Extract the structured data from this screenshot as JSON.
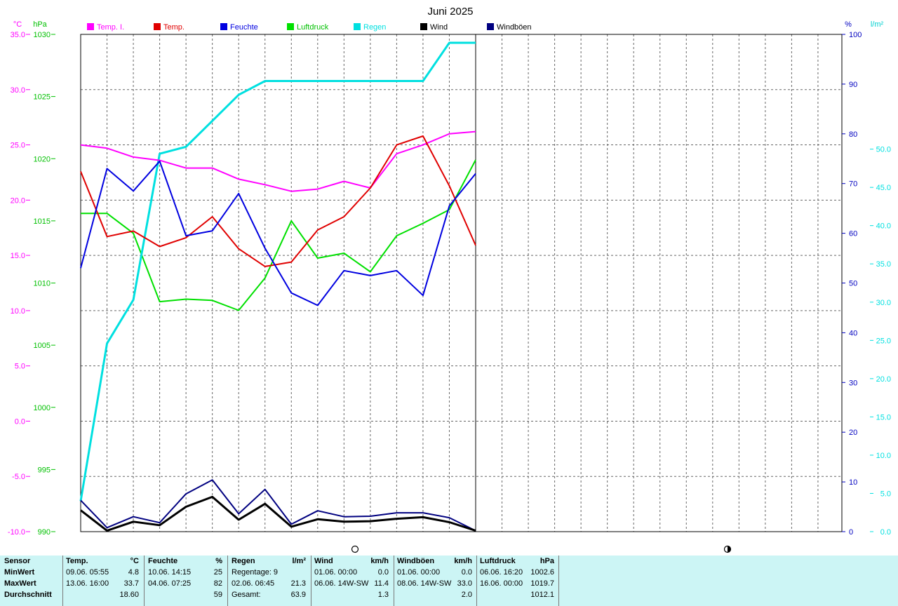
{
  "chart_data": {
    "type": "line",
    "title": "Juni 2025",
    "x": [
      1,
      2,
      3,
      4,
      5,
      6,
      7,
      8,
      9,
      10,
      11,
      12,
      13,
      14,
      15,
      16
    ],
    "axes": {
      "temp": {
        "unit": "°C",
        "range": [
          -10,
          35
        ],
        "ticks": [
          "35.0",
          "30.0",
          "25.0",
          "20.0",
          "15.0",
          "10.0",
          "5.0",
          "0.0",
          "-5.0",
          "-10.0"
        ],
        "color": "#ff00ff"
      },
      "pressure": {
        "unit": "hPa",
        "range": [
          990,
          1030
        ],
        "ticks": [
          "1030",
          "1025",
          "1020",
          "1015",
          "1010",
          "1005",
          "1000",
          "995",
          "990"
        ],
        "color": "#00c000"
      },
      "humidity": {
        "unit": "%",
        "range": [
          0,
          100
        ],
        "ticks": [
          "100",
          "90",
          "80",
          "70",
          "60",
          "50",
          "40",
          "30",
          "20",
          "10",
          "0"
        ],
        "color": "#0000c0"
      },
      "rain": {
        "unit": "l/m²",
        "range": [
          0,
          65
        ],
        "ticks": [
          "50.0",
          "45.0",
          "40.0",
          "35.0",
          "30.0",
          "25.0",
          "20.0",
          "15.0",
          "10.0",
          "5.0",
          "0.0"
        ],
        "color": "#00e0e0"
      }
    },
    "series": [
      {
        "name": "Temp. I.",
        "color": "#ff00ff",
        "axis": "temp",
        "values": [
          25.0,
          24.7,
          23.9,
          23.6,
          22.9,
          22.9,
          21.9,
          21.4,
          20.8,
          21.0,
          21.7,
          21.1,
          24.2,
          25.0,
          26.0,
          26.2
        ]
      },
      {
        "name": "Temp.",
        "color": "#e00000",
        "axis": "temp",
        "values": [
          22.6,
          16.7,
          17.2,
          15.8,
          16.6,
          18.5,
          15.6,
          14.0,
          14.4,
          17.3,
          18.5,
          21.1,
          25.0,
          25.8,
          21.3,
          15.9
        ]
      },
      {
        "name": "Feuchte",
        "color": "#0000e0",
        "axis": "humidity",
        "values": [
          53,
          73,
          68.5,
          74.5,
          59.5,
          60.5,
          68,
          57,
          48,
          45.5,
          52.5,
          51.5,
          52.5,
          47.5,
          65.5,
          72
        ]
      },
      {
        "name": "Luftdruck",
        "color": "#00e000",
        "axis": "pressure",
        "values": [
          1015.6,
          1015.6,
          1014.0,
          1008.5,
          1008.7,
          1008.6,
          1007.8,
          1010.4,
          1015.0,
          1012.0,
          1012.4,
          1010.9,
          1013.8,
          1014.8,
          1015.9,
          1019.9
        ]
      },
      {
        "name": "Regen",
        "color": "#00e0e0",
        "axis": "rain",
        "values": [
          4.0,
          24.6,
          30.3,
          49.4,
          50.3,
          53.7,
          57.1,
          58.9,
          58.9,
          58.9,
          58.9,
          58.9,
          58.9,
          58.9,
          63.9,
          63.9
        ]
      },
      {
        "name": "Wind",
        "color": "#000000",
        "axis": "humidity",
        "values": [
          4.3,
          0.2,
          2.0,
          1.3,
          5.0,
          7.0,
          2.4,
          5.6,
          1.0,
          2.5,
          2.0,
          2.1,
          2.6,
          2.9,
          1.9,
          0.2
        ]
      },
      {
        "name": "Windböen",
        "color": "#000080",
        "axis": "humidity",
        "values": [
          6.3,
          0.8,
          3.0,
          1.8,
          7.6,
          10.4,
          3.6,
          8.5,
          1.5,
          4.2,
          3.0,
          3.1,
          3.8,
          3.8,
          2.8,
          0.2
        ]
      }
    ],
    "grid": true,
    "legend_position": "top",
    "moon_phases": [
      {
        "phase": "new",
        "symbol": "○"
      },
      {
        "phase": "first-quarter",
        "symbol": "◐"
      }
    ]
  },
  "stats": {
    "labels": {
      "sensor": "Sensor",
      "min": "MinWert",
      "max": "MaxWert",
      "avg": "Durchschnitt"
    },
    "temp": {
      "title": "Temp.",
      "unit": "°C",
      "min_date": "09.06.  05:55",
      "min_val": "4.8",
      "max_date": "13.06.  16:00",
      "max_val": "33.7",
      "avg": "18.60"
    },
    "feuchte": {
      "title": "Feuchte",
      "unit": "%",
      "min_date": "10.06.  14:15",
      "min_val": "25",
      "max_date": "04.06.  07:25",
      "max_val": "82",
      "avg": "59"
    },
    "regen": {
      "title": "Regen",
      "unit": "l/m²",
      "days_label": "Regentage: 9",
      "max_date": "02.06.  06:45",
      "max_val": "21.3",
      "total_label": "Gesamt:",
      "total": "63.9"
    },
    "wind": {
      "title": "Wind",
      "unit": "km/h",
      "min_date": "01.06.  00:00",
      "min_val": "0.0",
      "max_date": "06.06.  14W-SW",
      "max_val": "11.4",
      "avg": "1.3"
    },
    "boeen": {
      "title": "Windböen",
      "unit": "km/h",
      "min_date": "01.06.  00:00",
      "min_val": "0.0",
      "max_date": "08.06.  14W-SW",
      "max_val": "33.0",
      "avg": "2.0"
    },
    "druck": {
      "title": "Luftdruck",
      "unit": "hPa",
      "min_date": "06.06.  16:20",
      "min_val": "1002.6",
      "max_date": "16.06.  00:00",
      "max_val": "1019.7",
      "avg": "1012.1"
    }
  }
}
